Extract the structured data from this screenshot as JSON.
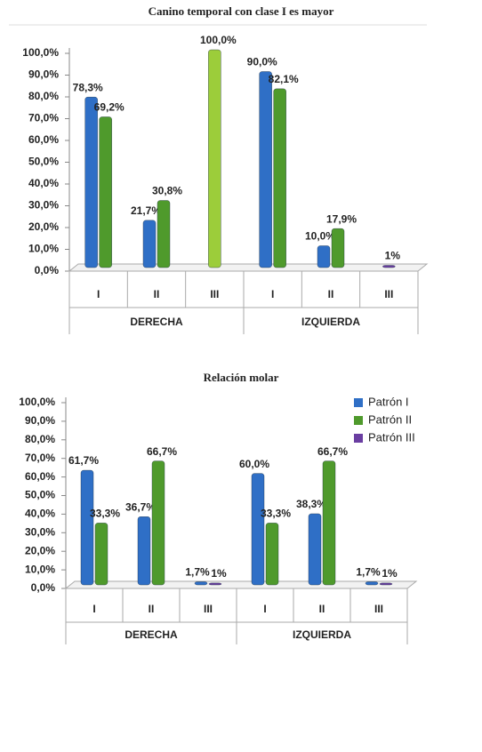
{
  "chart_data": [
    {
      "type": "bar",
      "title": "Canino temporal con clase I es mayor",
      "categories": [
        "I",
        "II",
        "III",
        "I",
        "II",
        "III"
      ],
      "groups": [
        "DERECHA",
        "IZQUIERDA"
      ],
      "ylim": [
        0,
        100
      ],
      "yticks": [
        {
          "value": 0,
          "label": "0,0%"
        },
        {
          "value": 10,
          "label": "10,0%"
        },
        {
          "value": 20,
          "label": "20,0%"
        },
        {
          "value": 30,
          "label": "30,0%"
        },
        {
          "value": 40,
          "label": "40,0%"
        },
        {
          "value": 50,
          "label": "50,0%"
        },
        {
          "value": 60,
          "label": "60,0%"
        },
        {
          "value": 70,
          "label": "70,0%"
        },
        {
          "value": 80,
          "label": "80,0%"
        },
        {
          "value": 90,
          "label": "90,0%"
        },
        {
          "value": 100,
          "label": "100,0%"
        }
      ],
      "series": [
        {
          "color": "#2f6fc6",
          "values": [
            78.3,
            21.7,
            null,
            90.0,
            10.0,
            null
          ],
          "value_labels": [
            "78,3%",
            "21,7%",
            null,
            "90,0%",
            "10,0%",
            null
          ]
        },
        {
          "color": "#4f9a2c",
          "values": [
            69.2,
            30.8,
            null,
            82.1,
            17.9,
            null
          ],
          "value_labels": [
            "69,2%",
            "30,8%",
            null,
            "82,1%",
            "17,9%",
            null
          ]
        },
        {
          "color": "#9ccd3a",
          "values": [
            null,
            null,
            100,
            null,
            null,
            null
          ],
          "value_labels": [
            null,
            null,
            "100,0%",
            null,
            null,
            null
          ]
        },
        {
          "color": "#6a3ea1",
          "values": [
            null,
            null,
            null,
            null,
            null,
            1
          ],
          "value_labels": [
            null,
            null,
            null,
            null,
            null,
            "1%"
          ]
        }
      ]
    },
    {
      "type": "bar",
      "title": "Relación molar",
      "categories": [
        "I",
        "II",
        "III",
        "I",
        "II",
        "III"
      ],
      "groups": [
        "DERECHA",
        "IZQUIERDA"
      ],
      "ylim": [
        0,
        100
      ],
      "yticks": [
        {
          "value": 0,
          "label": "0,0%"
        },
        {
          "value": 10,
          "label": "10,0%"
        },
        {
          "value": 20,
          "label": "20,0%"
        },
        {
          "value": 30,
          "label": "30,0%"
        },
        {
          "value": 40,
          "label": "40,0%"
        },
        {
          "value": 50,
          "label": "50,0%"
        },
        {
          "value": 60,
          "label": "60,0%"
        },
        {
          "value": 70,
          "label": "70,0%"
        },
        {
          "value": 80,
          "label": "80,0%"
        },
        {
          "value": 90,
          "label": "90,0%"
        },
        {
          "value": 100,
          "label": "100,0%"
        }
      ],
      "legend": "top-right",
      "series": [
        {
          "name": "Patrón I",
          "color": "#2f6fc6",
          "values": [
            61.7,
            36.7,
            1.7,
            60.0,
            38.3,
            1.7
          ],
          "value_labels": [
            "61,7%",
            "36,7%",
            "1,7%",
            "60,0%",
            "38,3%",
            "1,7%"
          ]
        },
        {
          "name": "Patrón II",
          "color": "#4f9a2c",
          "values": [
            33.3,
            66.7,
            null,
            33.3,
            66.7,
            null
          ],
          "value_labels": [
            "33,3%",
            "66,7%",
            null,
            "33,3%",
            "66,7%",
            null
          ]
        },
        {
          "name": "Patrón III",
          "color": "#6a3ea1",
          "values": [
            null,
            null,
            1,
            null,
            null,
            1
          ],
          "value_labels": [
            null,
            null,
            "1%",
            null,
            null,
            "1%"
          ]
        }
      ]
    }
  ]
}
